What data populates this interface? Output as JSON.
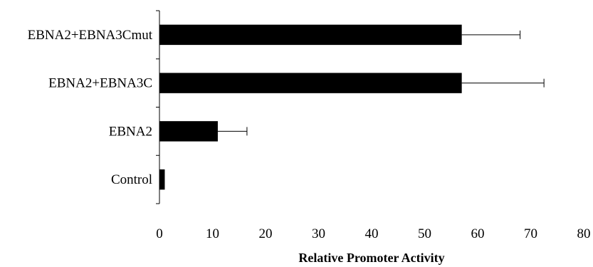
{
  "chart_data": {
    "type": "bar",
    "orientation": "horizontal",
    "title": "",
    "xlabel": "Relative Promoter Activity",
    "ylabel": "",
    "categories": [
      "Control",
      "EBNA2",
      "EBNA2+EBNA3C",
      "EBNA2+EBNA3Cmut"
    ],
    "values": [
      1,
      11,
      57,
      57
    ],
    "error_plus": [
      0,
      5.5,
      15.5,
      11
    ],
    "xlim": [
      0,
      80
    ],
    "xticks": [
      "0",
      "10",
      "20",
      "30",
      "40",
      "50",
      "60",
      "70",
      "80"
    ],
    "grid": false,
    "legend": "none",
    "bar_color": "#000000"
  }
}
